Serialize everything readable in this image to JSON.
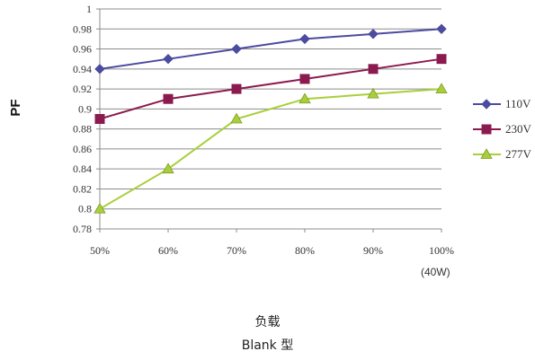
{
  "chart_data": {
    "type": "line",
    "title": "",
    "xlabel": "负载",
    "x_unit_note": "(40W)",
    "ylabel": "PF",
    "caption": "Blank 型",
    "categories": [
      "50%",
      "60%",
      "70%",
      "80%",
      "90%",
      "100%"
    ],
    "ylim": [
      0.78,
      1.0
    ],
    "yticks": [
      0.78,
      0.8,
      0.82,
      0.84,
      0.86,
      0.88,
      0.9,
      0.92,
      0.94,
      0.96,
      0.98,
      1
    ],
    "ytick_labels": [
      "0.78",
      "0.8",
      "0.82",
      "0.84",
      "0.86",
      "0.88",
      "0.9",
      "0.92",
      "0.94",
      "0.96",
      "0.98",
      "1"
    ],
    "grid": true,
    "legend": "right",
    "series": [
      {
        "name": "110V",
        "values": [
          0.94,
          0.95,
          0.96,
          0.97,
          0.975,
          0.98
        ],
        "color": "#4b4ba0",
        "marker": "diamond"
      },
      {
        "name": "230V",
        "values": [
          0.89,
          0.91,
          0.92,
          0.93,
          0.94,
          0.95
        ],
        "color": "#8b1a4f",
        "marker": "square"
      },
      {
        "name": "277V",
        "values": [
          0.8,
          0.84,
          0.89,
          0.91,
          0.915,
          0.92
        ],
        "color": "#a8cf3a",
        "marker": "triangle"
      }
    ]
  }
}
